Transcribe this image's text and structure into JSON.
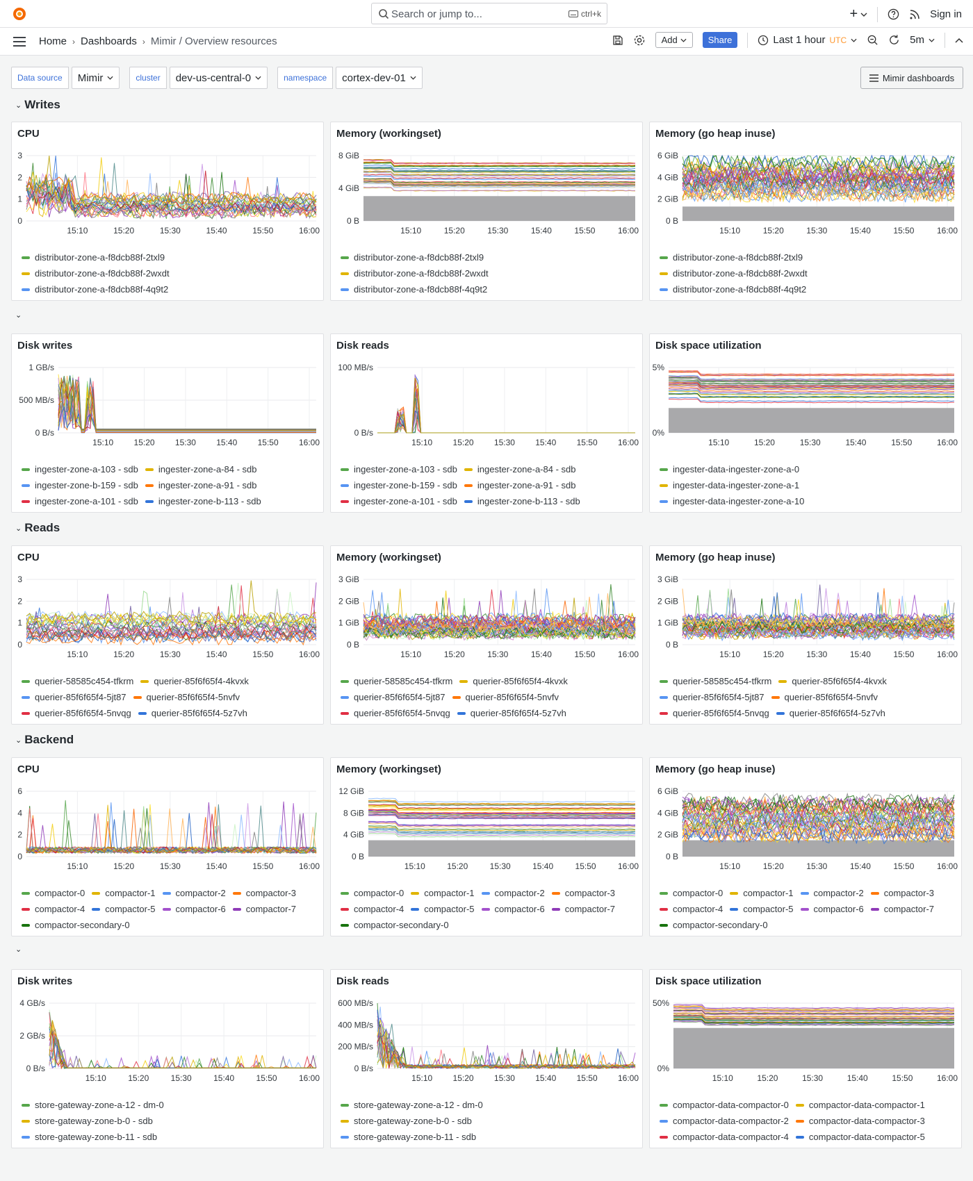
{
  "topbar": {
    "search_placeholder": "Search or jump to...",
    "search_shortcut": "ctrl+k",
    "sign_in": "Sign in",
    "new_label": "+"
  },
  "breadcrumb": {
    "home": "Home",
    "dashboards": "Dashboards",
    "current": "Mimir / Overview resources"
  },
  "toolbar": {
    "add_label": "Add",
    "share_label": "Share",
    "time_range": "Last 1 hour",
    "timezone": "UTC",
    "refresh_interval": "5m"
  },
  "variables": [
    {
      "label": "Data source",
      "value": "Mimir"
    },
    {
      "label": "cluster",
      "value": "dev-us-central-0"
    },
    {
      "label": "namespace",
      "value": "cortex-dev-01"
    }
  ],
  "mimir_dashboards_label": "Mimir dashboards",
  "rows": [
    "Writes",
    "Reads",
    "Backend"
  ],
  "x_ticks": [
    "15:10",
    "15:20",
    "15:30",
    "15:40",
    "15:50",
    "16:00"
  ],
  "colors": {
    "green": "#56a64b",
    "yellow": "#e0b400",
    "blue": "#5794f2",
    "orange": "#ff780a",
    "red": "#e02f44",
    "dblue": "#3274d9",
    "purple": "#a352cc",
    "dpurple": "#8f3bb8",
    "dgreen": "#19730e"
  },
  "panels": [
    {
      "title": "CPU",
      "yticks": [
        "3",
        "2",
        "1",
        "0"
      ],
      "legend_layout": "stack",
      "legend": [
        "distributor-zone-a-f8dcb88f-2txl9",
        "distributor-zone-a-f8dcb88f-2wxdt",
        "distributor-zone-a-f8dcb88f-4q9t2"
      ]
    },
    {
      "title": "Memory (workingset)",
      "yticks": [
        "8 GiB",
        "4 GiB",
        "0 B"
      ],
      "legend_layout": "stack",
      "legend": [
        "distributor-zone-a-f8dcb88f-2txl9",
        "distributor-zone-a-f8dcb88f-2wxdt",
        "distributor-zone-a-f8dcb88f-4q9t2"
      ]
    },
    {
      "title": "Memory (go heap inuse)",
      "yticks": [
        "6 GiB",
        "4 GiB",
        "2 GiB",
        "0 B"
      ],
      "legend_layout": "stack",
      "legend": [
        "distributor-zone-a-f8dcb88f-2txl9",
        "distributor-zone-a-f8dcb88f-2wxdt",
        "distributor-zone-a-f8dcb88f-4q9t2"
      ]
    },
    {
      "title": "Disk writes",
      "yticks": [
        "1 GB/s",
        "500 MB/s",
        "0 B/s"
      ],
      "legend_layout": "wrap",
      "legend": [
        "ingester-zone-a-103 - sdb",
        "ingester-zone-a-84 - sdb",
        "ingester-zone-b-159 - sdb",
        "ingester-zone-a-91 - sdb",
        "ingester-zone-a-101 - sdb",
        "ingester-zone-b-113 - sdb"
      ]
    },
    {
      "title": "Disk reads",
      "yticks": [
        "100 MB/s",
        "0 B/s"
      ],
      "legend_layout": "wrap",
      "legend": [
        "ingester-zone-a-103 - sdb",
        "ingester-zone-a-84 - sdb",
        "ingester-zone-b-159 - sdb",
        "ingester-zone-a-91 - sdb",
        "ingester-zone-a-101 - sdb",
        "ingester-zone-b-113 - sdb"
      ]
    },
    {
      "title": "Disk space utilization",
      "yticks": [
        "5%",
        "0%"
      ],
      "legend_layout": "stack",
      "legend": [
        "ingester-data-ingester-zone-a-0",
        "ingester-data-ingester-zone-a-1",
        "ingester-data-ingester-zone-a-10"
      ]
    },
    {
      "title": "CPU",
      "yticks": [
        "3",
        "2",
        "1",
        "0"
      ],
      "legend_layout": "wrap",
      "legend": [
        "querier-58585c454-tfkrm",
        "querier-85f6f65f4-4kvxk",
        "querier-85f6f65f4-5jt87",
        "querier-85f6f65f4-5nvfv",
        "querier-85f6f65f4-5nvqg",
        "querier-85f6f65f4-5z7vh"
      ]
    },
    {
      "title": "Memory (workingset)",
      "yticks": [
        "3 GiB",
        "2 GiB",
        "1 GiB",
        "0 B"
      ],
      "legend_layout": "wrap",
      "legend": [
        "querier-58585c454-tfkrm",
        "querier-85f6f65f4-4kvxk",
        "querier-85f6f65f4-5jt87",
        "querier-85f6f65f4-5nvfv",
        "querier-85f6f65f4-5nvqg",
        "querier-85f6f65f4-5z7vh"
      ]
    },
    {
      "title": "Memory (go heap inuse)",
      "yticks": [
        "3 GiB",
        "2 GiB",
        "1 GiB",
        "0 B"
      ],
      "legend_layout": "wrap",
      "legend": [
        "querier-58585c454-tfkrm",
        "querier-85f6f65f4-4kvxk",
        "querier-85f6f65f4-5jt87",
        "querier-85f6f65f4-5nvfv",
        "querier-85f6f65f4-5nvqg",
        "querier-85f6f65f4-5z7vh"
      ]
    },
    {
      "title": "CPU",
      "yticks": [
        "6",
        "4",
        "2",
        "0"
      ],
      "legend_layout": "wrap",
      "legend": [
        "compactor-0",
        "compactor-1",
        "compactor-2",
        "compactor-3",
        "compactor-4",
        "compactor-5",
        "compactor-6",
        "compactor-7",
        "compactor-secondary-0"
      ]
    },
    {
      "title": "Memory (workingset)",
      "yticks": [
        "12 GiB",
        "8 GiB",
        "4 GiB",
        "0 B"
      ],
      "legend_layout": "wrap",
      "legend": [
        "compactor-0",
        "compactor-1",
        "compactor-2",
        "compactor-3",
        "compactor-4",
        "compactor-5",
        "compactor-6",
        "compactor-7",
        "compactor-secondary-0"
      ]
    },
    {
      "title": "Memory (go heap inuse)",
      "yticks": [
        "6 GiB",
        "4 GiB",
        "2 GiB",
        "0 B"
      ],
      "legend_layout": "wrap",
      "legend": [
        "compactor-0",
        "compactor-1",
        "compactor-2",
        "compactor-3",
        "compactor-4",
        "compactor-5",
        "compactor-6",
        "compactor-7",
        "compactor-secondary-0"
      ]
    },
    {
      "title": "Disk writes",
      "yticks": [
        "4 GB/s",
        "2 GB/s",
        "0 B/s"
      ],
      "legend_layout": "stack",
      "legend": [
        "store-gateway-zone-a-12 - dm-0",
        "store-gateway-zone-b-0 - sdb",
        "store-gateway-zone-b-11 - sdb"
      ]
    },
    {
      "title": "Disk reads",
      "yticks": [
        "600 MB/s",
        "400 MB/s",
        "200 MB/s",
        "0 B/s"
      ],
      "legend_layout": "stack",
      "legend": [
        "store-gateway-zone-a-12 - dm-0",
        "store-gateway-zone-b-0 - sdb",
        "store-gateway-zone-b-11 - sdb"
      ]
    },
    {
      "title": "Disk space utilization",
      "yticks": [
        "50%",
        "0%"
      ],
      "legend_layout": "wrap",
      "legend": [
        "compactor-data-compactor-0",
        "compactor-data-compactor-1",
        "compactor-data-compactor-2",
        "compactor-data-compactor-3",
        "compactor-data-compactor-4",
        "compactor-data-compactor-5"
      ]
    }
  ]
}
